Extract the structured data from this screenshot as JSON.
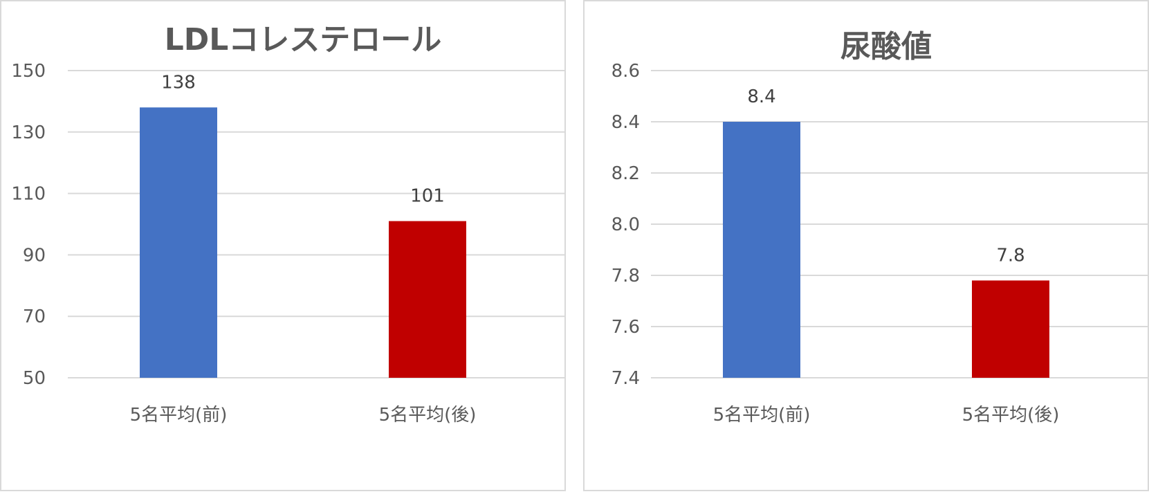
{
  "chart_data": [
    {
      "type": "bar",
      "title": "LDLコレステロール",
      "categories": [
        "5名平均(前)",
        "5名平均(後)"
      ],
      "values": [
        138,
        101
      ],
      "data_labels": [
        "138",
        "101"
      ],
      "colors": [
        "#4472c4",
        "#c00000"
      ],
      "ylim": [
        50,
        150
      ],
      "yticks": [
        "50",
        "70",
        "90",
        "110",
        "130",
        "150"
      ],
      "ytick_values": [
        50,
        70,
        90,
        110,
        130,
        150
      ],
      "grid": true,
      "legend": "none"
    },
    {
      "type": "bar",
      "title": "尿酸値",
      "categories": [
        "5名平均(前)",
        "5名平均(後)"
      ],
      "values": [
        8.4,
        7.78
      ],
      "data_labels": [
        "8.4",
        "7.8"
      ],
      "colors": [
        "#4472c4",
        "#c00000"
      ],
      "ylim": [
        7.4,
        8.6
      ],
      "yticks": [
        "7.4",
        "7.6",
        "7.8",
        "8.0",
        "8.2",
        "8.4",
        "8.6"
      ],
      "ytick_values": [
        7.4,
        7.6,
        7.8,
        8.0,
        8.2,
        8.4,
        8.6
      ],
      "grid": true,
      "legend": "none"
    }
  ]
}
